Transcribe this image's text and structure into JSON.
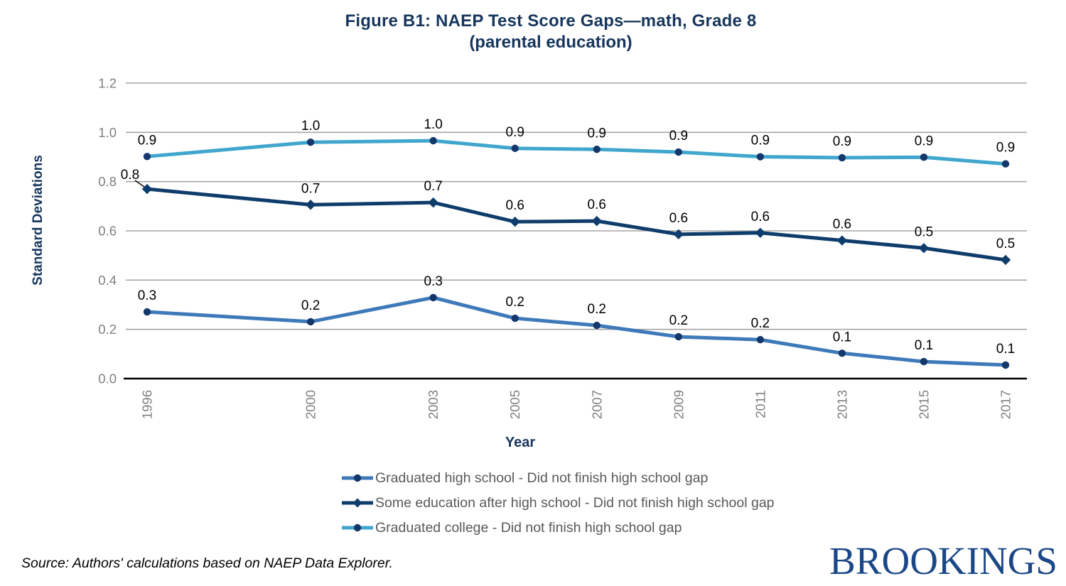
{
  "title": {
    "line1": "Figure B1: NAEP Test Score Gaps—math, Grade 8",
    "line2": "(parental education)"
  },
  "source_note": "Source: Authors' calculations based on NAEP Data Explorer.",
  "logo_text": "BROOKINGS",
  "colors": {
    "title_navy": "#17365D",
    "tick_gray": "#7F7F7F",
    "legend_text_gray": "#595959",
    "gridline_gray": "#A6A6A6",
    "axis_black": "#000000",
    "marker_navy": "#14386B",
    "series_blue": "#3E79B9",
    "series_navy": "#0F3D6B",
    "series_lightblue": "#41A6CE",
    "logo_navy": "#1B4788",
    "data_label_black": "#000000"
  },
  "chart_data": {
    "type": "line",
    "title": "Figure B1: NAEP Test Score Gaps—math, Grade 8 (parental education)",
    "xlabel": "Year",
    "ylabel": "Standard Deviations",
    "ylim": [
      0,
      1.2
    ],
    "grid": "horizontal",
    "legend_position": "bottom",
    "x": [
      1996,
      2000,
      2003,
      2005,
      2007,
      2009,
      2011,
      2013,
      2015,
      2017
    ],
    "x_tick_labels": [
      "1996",
      "2000",
      "2003",
      "2005",
      "2007",
      "2009",
      "2011",
      "2013",
      "2015",
      "2017"
    ],
    "y_tick_labels": [
      "0.0",
      "0.2",
      "0.4",
      "0.6",
      "0.8",
      "1.0",
      "1.2"
    ],
    "series": [
      {
        "name": "Graduated high school - Did not finish high school gap",
        "color": "#3E79B9",
        "marker": "circle",
        "values": [
          0.271,
          0.231,
          0.329,
          0.245,
          0.216,
          0.17,
          0.158,
          0.103,
          0.069,
          0.055
        ],
        "labels": [
          "0.3",
          "0.2",
          "0.3",
          "0.2",
          "0.2",
          "0.2",
          "0.2",
          "0.1",
          "0.1",
          "0.1"
        ]
      },
      {
        "name": "Some education after high school - Did not finish high school gap",
        "color": "#0F3D6B",
        "marker": "diamond",
        "label_callout_index": 0,
        "values": [
          0.77,
          0.706,
          0.715,
          0.637,
          0.64,
          0.586,
          0.592,
          0.561,
          0.53,
          0.482
        ],
        "labels": [
          "0.8",
          "0.7",
          "0.7",
          "0.6",
          "0.6",
          "0.6",
          "0.6",
          "0.6",
          "0.5",
          "0.5"
        ]
      },
      {
        "name": "Graduated college - Did not finish high school gap",
        "color": "#41A6CE",
        "marker": "circle",
        "values": [
          0.902,
          0.96,
          0.966,
          0.935,
          0.931,
          0.92,
          0.901,
          0.897,
          0.899,
          0.872
        ],
        "labels": [
          "0.9",
          "1.0",
          "1.0",
          "0.9",
          "0.9",
          "0.9",
          "0.9",
          "0.9",
          "0.9",
          "0.9"
        ]
      }
    ]
  }
}
